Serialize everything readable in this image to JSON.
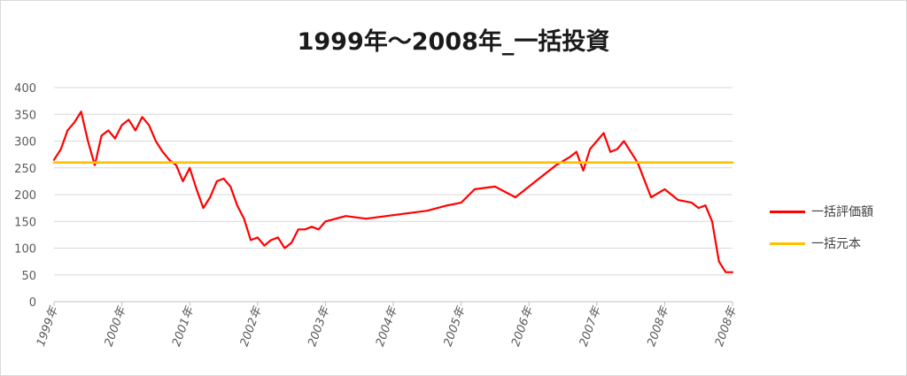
{
  "chart_data": {
    "type": "line",
    "title": "1999年～2008年_一括投資",
    "xlabel": "",
    "ylabel": "",
    "ylim": [
      0,
      400
    ],
    "y_ticks": [
      "0",
      "50",
      "100",
      "150",
      "200",
      "250",
      "300",
      "350",
      "400"
    ],
    "x_tick_labels": [
      "1999年",
      "2000年",
      "2001年",
      "2002年",
      "2003年",
      "2004年",
      "2005年",
      "2006年",
      "2007年",
      "2008年",
      "2008年"
    ],
    "grid": "horizontal",
    "legend_position": "right",
    "series": [
      {
        "name": "一括評価額",
        "color": "#ff0000",
        "x": [
          0.0,
          0.1,
          0.2,
          0.3,
          0.4,
          0.5,
          0.6,
          0.7,
          0.8,
          0.9,
          1.0,
          1.1,
          1.2,
          1.3,
          1.4,
          1.5,
          1.6,
          1.7,
          1.8,
          1.9,
          2.0,
          2.1,
          2.2,
          2.3,
          2.4,
          2.5,
          2.6,
          2.7,
          2.8,
          2.9,
          3.0,
          3.1,
          3.2,
          3.3,
          3.4,
          3.5,
          3.6,
          3.7,
          3.8,
          3.9,
          4.0,
          4.3,
          4.6,
          4.9,
          5.2,
          5.5,
          5.8,
          6.0,
          6.2,
          6.5,
          6.8,
          7.0,
          7.2,
          7.4,
          7.6,
          7.7,
          7.8,
          7.9,
          8.0,
          8.1,
          8.2,
          8.3,
          8.4,
          8.6,
          8.8,
          9.0,
          9.2,
          9.4,
          9.5,
          9.6,
          9.7,
          9.8,
          9.9,
          10.0
        ],
        "values": [
          265,
          285,
          320,
          335,
          355,
          300,
          255,
          310,
          320,
          305,
          330,
          340,
          320,
          345,
          330,
          300,
          280,
          265,
          255,
          225,
          250,
          210,
          175,
          195,
          225,
          230,
          215,
          180,
          155,
          115,
          120,
          105,
          115,
          120,
          100,
          110,
          135,
          135,
          140,
          135,
          150,
          160,
          155,
          160,
          165,
          170,
          180,
          185,
          210,
          215,
          195,
          215,
          235,
          255,
          270,
          280,
          245,
          285,
          300,
          315,
          280,
          285,
          300,
          260,
          195,
          210,
          190,
          185,
          175,
          180,
          150,
          75,
          55,
          55
        ]
      },
      {
        "name": "一括元本",
        "color": "#ffc000",
        "x": [
          0,
          10
        ],
        "values": [
          260,
          260
        ]
      }
    ]
  }
}
